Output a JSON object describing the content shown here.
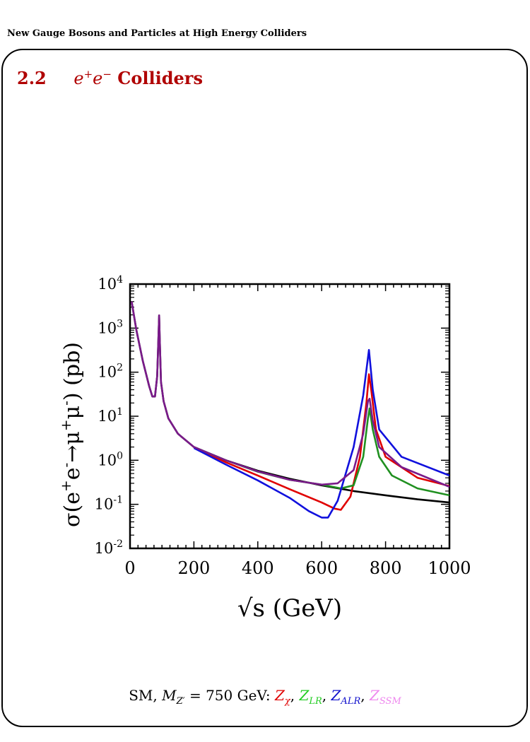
{
  "running_head": "New Gauge Bosons and Particles at High Energy Colliders",
  "section": {
    "number": "2.2",
    "math": "e+e−",
    "title": "Colliders"
  },
  "caption": {
    "prefix": "SM, ",
    "mass_label": "M",
    "mass_sub": "Z′",
    "mass_value": " = 750 GeV: ",
    "models": [
      {
        "base": "Z",
        "sub": "χ",
        "color": "#e00000"
      },
      {
        "base": "Z",
        "sub": "LR",
        "color": "#22cc22"
      },
      {
        "base": "Z",
        "sub": "ALR",
        "color": "#1010cc"
      },
      {
        "base": "Z",
        "sub": "SSM",
        "color": "#ee88ee"
      }
    ]
  },
  "chart_data": {
    "type": "line",
    "xlabel": "√s  (GeV)",
    "ylabel": "σ(e+e−→μ+μ−)  (pb)",
    "xlim": [
      0,
      1000
    ],
    "ylim_log10": [
      -2,
      4
    ],
    "yscale": "log",
    "x_ticks": [
      "0",
      "200",
      "400",
      "600",
      "800",
      "1000"
    ],
    "y_ticks": [
      "10-2",
      "10-1",
      "100",
      "101",
      "102",
      "103",
      "104"
    ],
    "series": [
      {
        "id": "SM",
        "color": "#000000",
        "points": [
          [
            5,
            4000
          ],
          [
            20,
            900
          ],
          [
            40,
            180
          ],
          [
            60,
            48
          ],
          [
            70,
            28
          ],
          [
            78,
            28
          ],
          [
            85,
            80
          ],
          [
            89,
            600
          ],
          [
            91.2,
            1950
          ],
          [
            93,
            600
          ],
          [
            97,
            60
          ],
          [
            105,
            22
          ],
          [
            120,
            9
          ],
          [
            150,
            4
          ],
          [
            200,
            2
          ],
          [
            300,
            1.0
          ],
          [
            400,
            0.58
          ],
          [
            500,
            0.38
          ],
          [
            600,
            0.27
          ],
          [
            700,
            0.2
          ],
          [
            800,
            0.16
          ],
          [
            900,
            0.13
          ],
          [
            1000,
            0.11
          ]
        ]
      },
      {
        "id": "Z_chi",
        "color": "#e00000",
        "points": [
          [
            200,
            2
          ],
          [
            300,
            0.9
          ],
          [
            400,
            0.45
          ],
          [
            500,
            0.22
          ],
          [
            600,
            0.11
          ],
          [
            640,
            0.08
          ],
          [
            660,
            0.075
          ],
          [
            690,
            0.15
          ],
          [
            720,
            1.2
          ],
          [
            740,
            20
          ],
          [
            748,
            90
          ],
          [
            755,
            40
          ],
          [
            770,
            5
          ],
          [
            800,
            1.2
          ],
          [
            900,
            0.4
          ],
          [
            1000,
            0.26
          ]
        ]
      },
      {
        "id": "Z_LR",
        "color": "#209020",
        "points": [
          [
            200,
            2
          ],
          [
            300,
            1.0
          ],
          [
            400,
            0.55
          ],
          [
            500,
            0.36
          ],
          [
            600,
            0.28
          ],
          [
            660,
            0.23
          ],
          [
            700,
            0.27
          ],
          [
            730,
            1.2
          ],
          [
            745,
            9
          ],
          [
            750,
            15
          ],
          [
            760,
            5
          ],
          [
            780,
            1.2
          ],
          [
            820,
            0.45
          ],
          [
            900,
            0.23
          ],
          [
            1000,
            0.16
          ]
        ]
      },
      {
        "id": "Z_ALR",
        "color": "#1010dd",
        "points": [
          [
            200,
            1.9
          ],
          [
            300,
            0.8
          ],
          [
            400,
            0.35
          ],
          [
            500,
            0.14
          ],
          [
            560,
            0.07
          ],
          [
            600,
            0.05
          ],
          [
            620,
            0.05
          ],
          [
            650,
            0.12
          ],
          [
            700,
            2
          ],
          [
            730,
            30
          ],
          [
            748,
            320
          ],
          [
            760,
            40
          ],
          [
            780,
            5
          ],
          [
            850,
            1.2
          ],
          [
            1000,
            0.45
          ]
        ]
      },
      {
        "id": "Z_SSM",
        "color": "#7a1a8a",
        "points": [
          [
            5,
            4000
          ],
          [
            20,
            900
          ],
          [
            40,
            180
          ],
          [
            60,
            48
          ],
          [
            70,
            28
          ],
          [
            78,
            28
          ],
          [
            85,
            80
          ],
          [
            89,
            600
          ],
          [
            91.2,
            1950
          ],
          [
            93,
            600
          ],
          [
            97,
            60
          ],
          [
            105,
            22
          ],
          [
            120,
            9
          ],
          [
            150,
            4
          ],
          [
            200,
            2
          ],
          [
            300,
            1.0
          ],
          [
            400,
            0.56
          ],
          [
            500,
            0.36
          ],
          [
            600,
            0.28
          ],
          [
            650,
            0.3
          ],
          [
            700,
            0.6
          ],
          [
            730,
            4
          ],
          [
            745,
            22
          ],
          [
            750,
            25
          ],
          [
            760,
            8
          ],
          [
            780,
            2
          ],
          [
            850,
            0.7
          ],
          [
            1000,
            0.25
          ]
        ]
      }
    ]
  }
}
